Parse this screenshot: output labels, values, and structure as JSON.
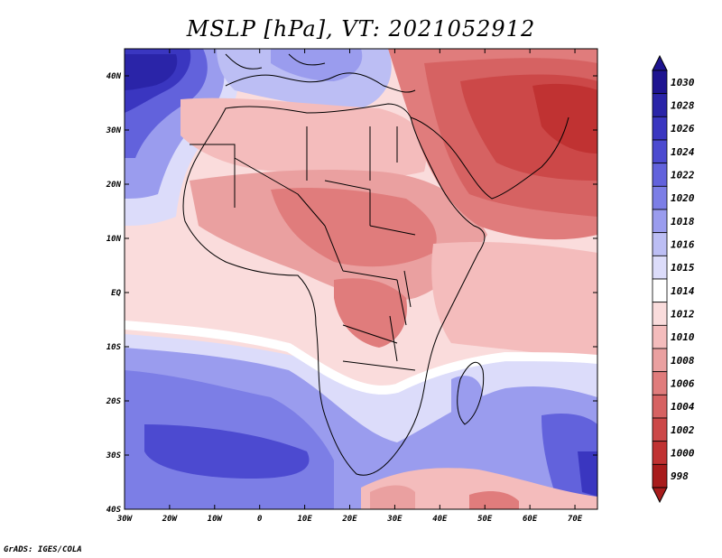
{
  "title": "MSLP [hPa], VT: 2021052912",
  "credit": "GrADS: IGES/COLA",
  "axes": {
    "lat_labels": [
      "40N",
      "30N",
      "20N",
      "10N",
      "EQ",
      "10S",
      "20S",
      "30S",
      "40S"
    ],
    "lon_labels": [
      "30W",
      "20W",
      "10W",
      "0",
      "10E",
      "20E",
      "30E",
      "40E",
      "50E",
      "60E",
      "70E"
    ],
    "lat_range": [
      -40,
      45
    ],
    "lon_range": [
      -30,
      75
    ]
  },
  "colorbar": {
    "levels": [
      "1030",
      "1028",
      "1026",
      "1024",
      "1022",
      "1020",
      "1018",
      "1016",
      "1015",
      "1014",
      "1012",
      "1010",
      "1008",
      "1006",
      "1004",
      "1002",
      "1000",
      "998"
    ],
    "colors": [
      "#1e1490",
      "#2a24a8",
      "#3a36c0",
      "#4c4ad0",
      "#6262dc",
      "#7c7ee6",
      "#9a9cee",
      "#bcbef4",
      "#dcdcfa",
      "#ffffff",
      "#fadcdc",
      "#f4bcbc",
      "#eaa0a0",
      "#e07c7c",
      "#d66262",
      "#cc4848",
      "#c03232",
      "#a81c1c"
    ]
  },
  "regions": [
    {
      "name": "north-atlantic-high",
      "color": "#3a36c0"
    },
    {
      "name": "mediterranean",
      "color": "#bcbef4"
    },
    {
      "name": "sahara",
      "color": "#f4bcbc"
    },
    {
      "name": "sahel",
      "color": "#e07c7c"
    },
    {
      "name": "arabia",
      "color": "#cc4848"
    },
    {
      "name": "southern-high-west",
      "color": "#4c4ad0"
    },
    {
      "name": "southern-high-east",
      "color": "#4c4ad0"
    }
  ]
}
